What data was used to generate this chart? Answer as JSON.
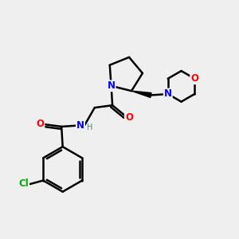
{
  "background_color": "#efefef",
  "bond_color": "#000000",
  "bond_width": 1.8,
  "atom_colors": {
    "N": "#0000ff",
    "O": "#ff0000",
    "Cl": "#00aa00",
    "C": "#000000",
    "H": "#558888"
  },
  "font_size": 8.5
}
